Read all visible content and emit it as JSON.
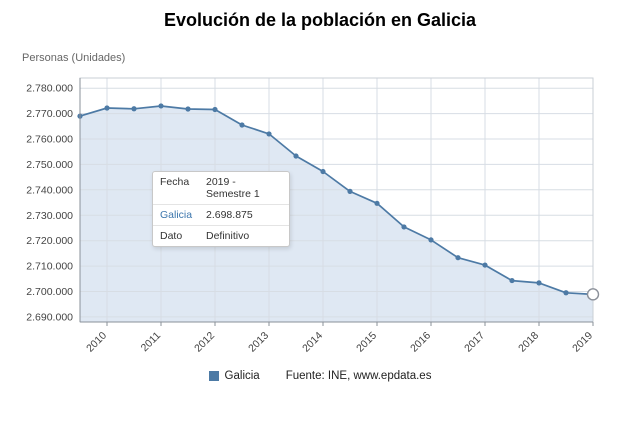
{
  "header": {
    "title": "Evolución de la población en Galicia"
  },
  "axis": {
    "y_label": "Personas (Unidades)"
  },
  "tooltip": {
    "rows": [
      {
        "label": "Fecha",
        "value": "2019 - Semestre 1"
      },
      {
        "label": "Galicia",
        "value": "2.698.875"
      },
      {
        "label": "Dato",
        "value": "Definitivo"
      }
    ]
  },
  "legend": {
    "series": "Galicia",
    "source": "Fuente: INE, www.epdata.es"
  },
  "chart_data": {
    "type": "area",
    "title": "Evolución de la población en Galicia",
    "xlabel": "",
    "ylabel": "Personas (Unidades)",
    "ylim": [
      2688000,
      2784000
    ],
    "grid": true,
    "legend_position": "bottom",
    "x": [
      "2009-S2",
      "2010-S1",
      "2010-S2",
      "2011-S1",
      "2011-S2",
      "2012-S1",
      "2012-S2",
      "2013-S1",
      "2013-S2",
      "2014-S1",
      "2014-S2",
      "2015-S1",
      "2015-S2",
      "2016-S1",
      "2016-S2",
      "2017-S1",
      "2017-S2",
      "2018-S1",
      "2018-S2",
      "2019-S1"
    ],
    "series": [
      {
        "name": "Galicia",
        "values": [
          2769000,
          2772200,
          2771900,
          2773000,
          2771800,
          2771600,
          2765500,
          2762000,
          2753300,
          2747200,
          2739400,
          2734700,
          2725400,
          2720300,
          2713300,
          2710400,
          2704300,
          2703400,
          2699500,
          2698875
        ]
      }
    ],
    "highlighted_point": {
      "x": "2019-S1",
      "value": 2698875
    },
    "y_ticks": [
      {
        "value": 2690000,
        "label": "2.690.000"
      },
      {
        "value": 2700000,
        "label": "2.700.000"
      },
      {
        "value": 2710000,
        "label": "2.710.000"
      },
      {
        "value": 2720000,
        "label": "2.720.000"
      },
      {
        "value": 2730000,
        "label": "2.730.000"
      },
      {
        "value": 2740000,
        "label": "2.740.000"
      },
      {
        "value": 2750000,
        "label": "2.750.000"
      },
      {
        "value": 2760000,
        "label": "2.760.000"
      },
      {
        "value": 2770000,
        "label": "2.770.000"
      },
      {
        "value": 2780000,
        "label": "2.780.000"
      }
    ],
    "x_ticks": [
      {
        "index": 1,
        "label": "2010"
      },
      {
        "index": 3,
        "label": "2011"
      },
      {
        "index": 5,
        "label": "2012"
      },
      {
        "index": 7,
        "label": "2013"
      },
      {
        "index": 9,
        "label": "2014"
      },
      {
        "index": 11,
        "label": "2015"
      },
      {
        "index": 13,
        "label": "2016"
      },
      {
        "index": 15,
        "label": "2017"
      },
      {
        "index": 17,
        "label": "2018"
      },
      {
        "index": 19,
        "label": "2019"
      }
    ],
    "colors": {
      "line": "#4d7aa5",
      "area": "#dfe8f3",
      "grid": "#d7dde4",
      "frame": "#c9cfd6",
      "axis": "#8a9099",
      "point_outline": "#8b9099",
      "tick_text": "#444444"
    }
  }
}
